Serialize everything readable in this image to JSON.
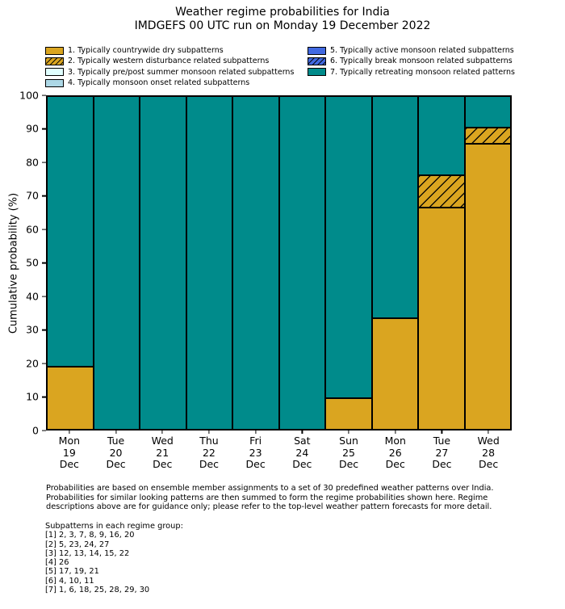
{
  "title": {
    "line1": "Weather regime probabilities for India",
    "line2": "IMDGEFS 00 UTC run on Monday 19 December 2022"
  },
  "legend": {
    "left": [
      {
        "label": "1. Typically countrywide dry subpatterns",
        "color": "#DAA520",
        "hatch": false
      },
      {
        "label": "2. Typically western disturbance related subpatterns",
        "color": "#DAA520",
        "hatch": true
      },
      {
        "label": "3. Typically pre/post summer monsoon related subpatterns",
        "color": "#E0FFFF",
        "hatch": false
      },
      {
        "label": "4. Typically monsoon onset related subpatterns",
        "color": "#ADD8E6",
        "hatch": false
      }
    ],
    "right": [
      {
        "label": "5. Typically active monsoon related subpatterns",
        "color": "#4169E1",
        "hatch": false
      },
      {
        "label": "6. Typically break monsoon related subpatterns",
        "color": "#4169E1",
        "hatch": true
      },
      {
        "label": "7. Typically retreating monsoon related patterns",
        "color": "#008B8B",
        "hatch": false
      }
    ]
  },
  "chart_data": {
    "type": "bar",
    "stacked": true,
    "title": "Weather regime probabilities for India",
    "subtitle": "IMDGEFS 00 UTC run on Monday 19 December 2022",
    "xlabel": "",
    "ylabel": "Cumulative probability (%)",
    "ylim": [
      0,
      100
    ],
    "yticks": [
      0,
      10,
      20,
      30,
      40,
      50,
      60,
      70,
      80,
      90,
      100
    ],
    "grid": false,
    "legend_position": "top",
    "categories": [
      [
        "Mon",
        "19",
        "Dec"
      ],
      [
        "Tue",
        "20",
        "Dec"
      ],
      [
        "Wed",
        "21",
        "Dec"
      ],
      [
        "Thu",
        "22",
        "Dec"
      ],
      [
        "Fri",
        "23",
        "Dec"
      ],
      [
        "Sat",
        "24",
        "Dec"
      ],
      [
        "Sun",
        "25",
        "Dec"
      ],
      [
        "Mon",
        "26",
        "Dec"
      ],
      [
        "Tue",
        "27",
        "Dec"
      ],
      [
        "Wed",
        "28",
        "Dec"
      ]
    ],
    "series": [
      {
        "key": "regime-1",
        "name": "1. Typically countrywide dry subpatterns",
        "color": "#DAA520",
        "hatch": false,
        "values": [
          19,
          0,
          0,
          0,
          0,
          0,
          9.5,
          33.3,
          66.7,
          85.7
        ]
      },
      {
        "key": "regime-2",
        "name": "2. Typically western disturbance related subpatterns",
        "color": "#DAA520",
        "hatch": true,
        "values": [
          0,
          0,
          0,
          0,
          0,
          0,
          0,
          0,
          9.5,
          4.8
        ]
      },
      {
        "key": "regime-3",
        "name": "3. Typically pre/post summer monsoon related subpatterns",
        "color": "#E0FFFF",
        "hatch": false,
        "values": [
          0,
          0,
          0,
          0,
          0,
          0,
          0,
          0,
          0,
          0
        ]
      },
      {
        "key": "regime-4",
        "name": "4. Typically monsoon onset related subpatterns",
        "color": "#ADD8E6",
        "hatch": false,
        "values": [
          0,
          0,
          0,
          0,
          0,
          0,
          0,
          0,
          0,
          0
        ]
      },
      {
        "key": "regime-5",
        "name": "5. Typically active monsoon related subpatterns",
        "color": "#4169E1",
        "hatch": false,
        "values": [
          0,
          0,
          0,
          0,
          0,
          0,
          0,
          0,
          0,
          0
        ]
      },
      {
        "key": "regime-6",
        "name": "6. Typically break monsoon related subpatterns",
        "color": "#4169E1",
        "hatch": true,
        "values": [
          0,
          0,
          0,
          0,
          0,
          0,
          0,
          0,
          0,
          0
        ]
      },
      {
        "key": "regime-7",
        "name": "7. Typically retreating monsoon related patterns",
        "color": "#008B8B",
        "hatch": false,
        "values": [
          81,
          100,
          100,
          100,
          100,
          100,
          90.5,
          66.7,
          23.8,
          9.5
        ]
      }
    ]
  },
  "footnote": {
    "lines": [
      "Probabilities are based on ensemble member assignments to a set of 30 predefined weather patterns over India.",
      "Probabilities for similar looking patterns are then summed to form the regime probabilities shown here. Regime",
      "descriptions above are for guidance only; please refer to the top-level weather pattern forecasts for more detail."
    ]
  },
  "subpatterns": {
    "heading": "Subpatterns in each regime group:",
    "groups": [
      "[1] 2, 3, 7, 8, 9, 16, 20",
      "[2] 5, 23, 24, 27",
      "[3] 12, 13, 14, 15, 22",
      "[4] 26",
      "[5] 17, 19, 21",
      "[6] 4, 10, 11",
      "[7] 1, 6, 18, 25, 28, 29, 30"
    ]
  }
}
